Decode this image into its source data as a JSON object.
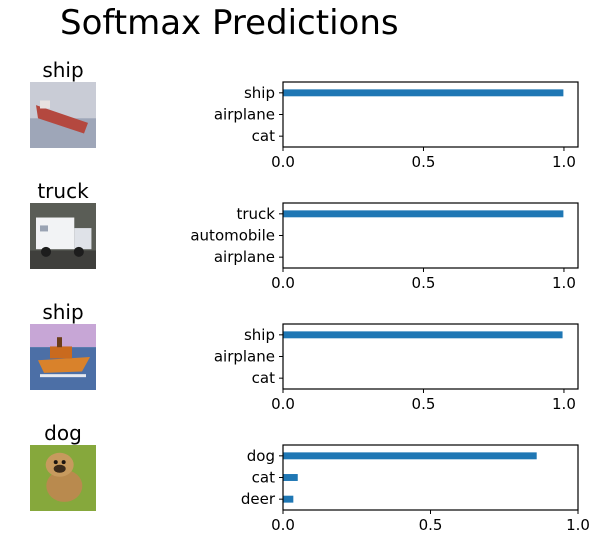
{
  "figure": {
    "title": "Softmax Predictions"
  },
  "colors": {
    "bar": "#1f77b4",
    "axes": "#000000",
    "background": "#ffffff"
  },
  "chart_data": [
    {
      "type": "bar",
      "orientation": "horizontal",
      "image_title": "ship",
      "image_icon": "ship-thumbnail",
      "categories": [
        "ship",
        "airplane",
        "cat"
      ],
      "values": [
        0.998,
        0.001,
        0.001
      ],
      "xlim": [
        0,
        1.05
      ],
      "xticks": [
        "0.0",
        "0.5",
        "1.0"
      ]
    },
    {
      "type": "bar",
      "orientation": "horizontal",
      "image_title": "truck",
      "image_icon": "truck-thumbnail",
      "categories": [
        "truck",
        "automobile",
        "airplane"
      ],
      "values": [
        0.998,
        0.001,
        0.001
      ],
      "xlim": [
        0,
        1.05
      ],
      "xticks": [
        "0.0",
        "0.5",
        "1.0"
      ]
    },
    {
      "type": "bar",
      "orientation": "horizontal",
      "image_title": "ship",
      "image_icon": "boat-thumbnail",
      "categories": [
        "ship",
        "airplane",
        "cat"
      ],
      "values": [
        0.995,
        0.002,
        0.001
      ],
      "xlim": [
        0,
        1.05
      ],
      "xticks": [
        "0.0",
        "0.5",
        "1.0"
      ]
    },
    {
      "type": "bar",
      "orientation": "horizontal",
      "image_title": "dog",
      "image_icon": "dog-thumbnail",
      "categories": [
        "dog",
        "cat",
        "deer"
      ],
      "values": [
        0.86,
        0.05,
        0.035
      ],
      "xlim": [
        0,
        1.0
      ],
      "xticks": [
        "0.0",
        "0.5",
        "1.0"
      ]
    }
  ]
}
